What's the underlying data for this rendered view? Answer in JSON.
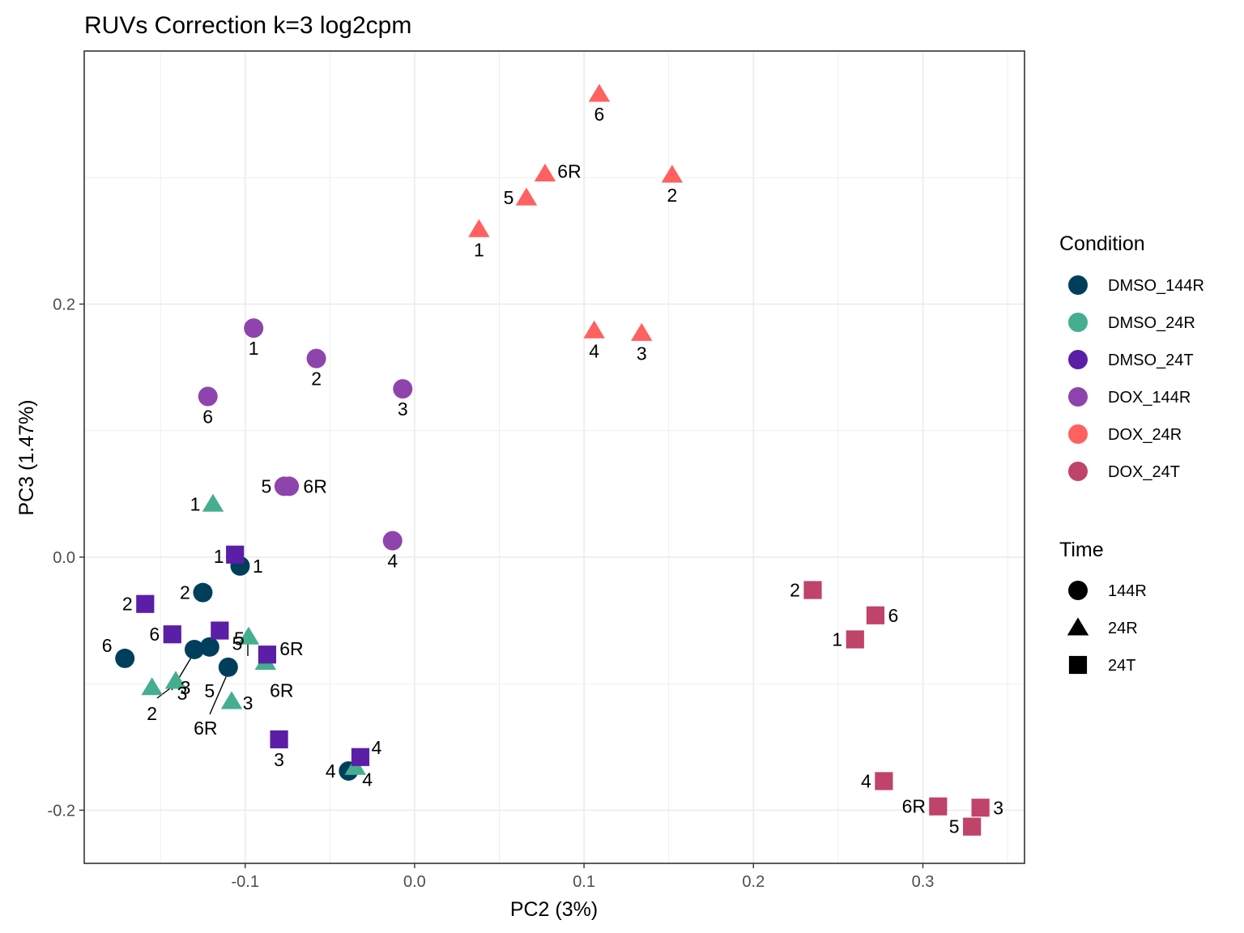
{
  "chart_data": {
    "type": "scatter",
    "title": "RUVs Correction k=3 log2cpm",
    "xlabel": "PC2 (3%)",
    "ylabel": "PC3 (1.47%)",
    "xlim": [
      -0.195,
      0.36
    ],
    "ylim": [
      -0.242,
      0.4
    ],
    "x_ticks": [
      -0.1,
      0.0,
      0.1,
      0.2,
      0.3
    ],
    "x_tick_labels": [
      "-0.1",
      "0.0",
      "0.1",
      "0.2",
      "0.3"
    ],
    "y_ticks": [
      -0.2,
      0.0,
      0.2
    ],
    "y_tick_labels": [
      "-0.2",
      "0.0",
      "0.2"
    ],
    "grid": true,
    "legends": [
      {
        "title": "Condition",
        "position": "right",
        "entries": [
          {
            "label": "DMSO_144R",
            "color": "#003f5c"
          },
          {
            "label": "DMSO_24R",
            "color": "#45ae8f"
          },
          {
            "label": "DMSO_24T",
            "color": "#5a1fa6"
          },
          {
            "label": "DOX_144R",
            "color": "#8e44ad"
          },
          {
            "label": "DOX_24R",
            "color": "#ff6060"
          },
          {
            "label": "DOX_24T",
            "color": "#c0436a"
          }
        ]
      },
      {
        "title": "Time",
        "position": "right",
        "entries": [
          {
            "label": "144R",
            "shape": "circle"
          },
          {
            "label": "24R",
            "shape": "triangle"
          },
          {
            "label": "24T",
            "shape": "square"
          }
        ]
      }
    ],
    "series": [
      {
        "name": "DMSO_144R",
        "time": "144R",
        "shape": "circle",
        "color": "#003f5c",
        "points": [
          {
            "x": -0.103,
            "y": -0.007,
            "label": "1"
          },
          {
            "x": -0.125,
            "y": -0.028,
            "label": "2"
          },
          {
            "x": -0.13,
            "y": -0.073,
            "label": "3"
          },
          {
            "x": -0.039,
            "y": -0.169,
            "label": "4"
          },
          {
            "x": -0.121,
            "y": -0.071,
            "label": "5"
          },
          {
            "x": -0.171,
            "y": -0.08,
            "label": "6"
          },
          {
            "x": -0.11,
            "y": -0.087,
            "label": "6R"
          }
        ]
      },
      {
        "name": "DMSO_24R",
        "time": "24R",
        "shape": "triangle",
        "color": "#45ae8f",
        "points": [
          {
            "x": -0.119,
            "y": 0.042,
            "label": "1"
          },
          {
            "x": -0.155,
            "y": -0.103,
            "label": "2"
          },
          {
            "x": -0.141,
            "y": -0.098,
            "label": "3"
          },
          {
            "x": -0.035,
            "y": -0.166,
            "label": "4"
          },
          {
            "x": -0.098,
            "y": -0.063,
            "label": "5"
          },
          {
            "x": -0.088,
            "y": -0.083,
            "label": "6R"
          },
          {
            "x": -0.108,
            "y": -0.114,
            "label": "3"
          }
        ]
      },
      {
        "name": "DMSO_24T",
        "time": "24T",
        "shape": "square",
        "color": "#5a1fa6",
        "points": [
          {
            "x": -0.106,
            "y": 0.002,
            "label": "1"
          },
          {
            "x": -0.159,
            "y": -0.037,
            "label": "2"
          },
          {
            "x": -0.08,
            "y": -0.144,
            "label": "3"
          },
          {
            "x": -0.032,
            "y": -0.158,
            "label": "4"
          },
          {
            "x": -0.115,
            "y": -0.058,
            "label": "5"
          },
          {
            "x": -0.143,
            "y": -0.061,
            "label": "6"
          },
          {
            "x": -0.087,
            "y": -0.077,
            "label": "6R"
          }
        ]
      },
      {
        "name": "DOX_144R",
        "time": "144R",
        "shape": "circle",
        "color": "#8e44ad",
        "points": [
          {
            "x": -0.095,
            "y": 0.181,
            "label": "1"
          },
          {
            "x": -0.058,
            "y": 0.157,
            "label": "2"
          },
          {
            "x": -0.007,
            "y": 0.133,
            "label": "3"
          },
          {
            "x": -0.013,
            "y": 0.013,
            "label": "4"
          },
          {
            "x": -0.077,
            "y": 0.056,
            "label": "5"
          },
          {
            "x": -0.122,
            "y": 0.127,
            "label": "6"
          },
          {
            "x": -0.074,
            "y": 0.056,
            "label": "6R"
          }
        ]
      },
      {
        "name": "DOX_24R",
        "time": "24R",
        "shape": "triangle",
        "color": "#ff6060",
        "points": [
          {
            "x": 0.038,
            "y": 0.259,
            "label": "1"
          },
          {
            "x": 0.152,
            "y": 0.302,
            "label": "2"
          },
          {
            "x": 0.134,
            "y": 0.177,
            "label": "3"
          },
          {
            "x": 0.106,
            "y": 0.179,
            "label": "4"
          },
          {
            "x": 0.066,
            "y": 0.284,
            "label": "5"
          },
          {
            "x": 0.109,
            "y": 0.366,
            "label": "6"
          },
          {
            "x": 0.077,
            "y": 0.303,
            "label": "6R"
          }
        ]
      },
      {
        "name": "DOX_24T",
        "time": "24T",
        "shape": "square",
        "color": "#c0436a",
        "points": [
          {
            "x": 0.26,
            "y": -0.065,
            "label": "1"
          },
          {
            "x": 0.235,
            "y": -0.026,
            "label": "2"
          },
          {
            "x": 0.334,
            "y": -0.198,
            "label": "3"
          },
          {
            "x": 0.277,
            "y": -0.177,
            "label": "4"
          },
          {
            "x": 0.329,
            "y": -0.213,
            "label": "5"
          },
          {
            "x": 0.272,
            "y": -0.046,
            "label": "6"
          },
          {
            "x": 0.309,
            "y": -0.197,
            "label": "6R"
          }
        ]
      }
    ]
  }
}
